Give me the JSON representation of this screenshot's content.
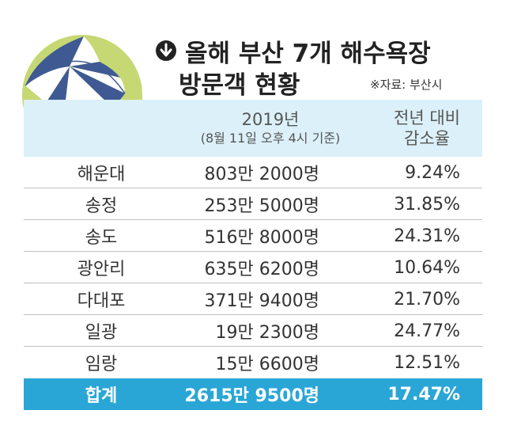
{
  "title": {
    "line1": "올해 부산 7개 해수욕장",
    "line2": "방문객 현황"
  },
  "source": "※자료: 부산시",
  "header": {
    "year": "2019년",
    "year_note": "(8월 11일 오후 4시 기준)",
    "change_line1": "전년 대비",
    "change_line2": "감소율"
  },
  "rows": [
    {
      "name": "해운대",
      "visitors": "803만 2000명",
      "change": "9.24%"
    },
    {
      "name": "송정",
      "visitors": "253만 5000명",
      "change": "31.85%"
    },
    {
      "name": "송도",
      "visitors": "516만 8000명",
      "change": "24.31%"
    },
    {
      "name": "광안리",
      "visitors": "635만 6200명",
      "change": "10.64%"
    },
    {
      "name": "다대포",
      "visitors": "371만 9400명",
      "change": "21.70%"
    },
    {
      "name": "일광",
      "visitors": "19만 2300명",
      "change": "24.77%"
    },
    {
      "name": "임랑",
      "visitors": "15만 6600명",
      "change": "12.51%"
    }
  ],
  "total": {
    "name": "합계",
    "visitors": "2615만 9500명",
    "change": "17.47%"
  },
  "colors": {
    "header_bg": "#dcf0f9",
    "total_bg": "#2aa6d6",
    "art_circle": "#c5d873",
    "sand": "#f0d58e",
    "umbrella_blue": "#3f5a93"
  },
  "icons": {
    "title_icon": "arrow-down-circle-icon",
    "illustration": "beach-umbrella-ball-icon"
  }
}
